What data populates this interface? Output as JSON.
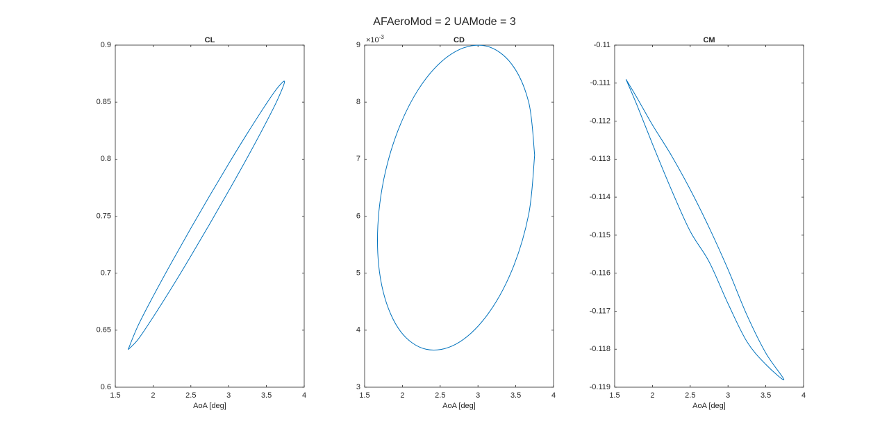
{
  "title": "AFAeroMod = 2 UAMode = 3",
  "chart_data": [
    {
      "type": "line",
      "title": "CL",
      "xlabel": "AoA [deg]",
      "xlim": [
        1.5,
        4
      ],
      "xticks": [
        1.5,
        2,
        2.5,
        3,
        3.5,
        4
      ],
      "ylim": [
        0.6,
        0.9
      ],
      "yticks": [
        0.6,
        0.65,
        0.7,
        0.75,
        0.8,
        0.85,
        0.9
      ],
      "series": [
        {
          "color": "#0072bd",
          "x": [
            1.67,
            1.8,
            2.0,
            2.25,
            2.5,
            2.75,
            3.0,
            3.25,
            3.5,
            3.65,
            3.74,
            3.65,
            3.5,
            3.25,
            3.0,
            2.75,
            2.5,
            2.25,
            2.0,
            1.8,
            1.67
          ],
          "values": [
            0.633,
            0.6538,
            0.6796,
            0.71,
            0.7394,
            0.768,
            0.7959,
            0.8229,
            0.8487,
            0.8628,
            0.868,
            0.8526,
            0.8327,
            0.8017,
            0.7721,
            0.7432,
            0.715,
            0.6876,
            0.6614,
            0.6418,
            0.633
          ]
        }
      ]
    },
    {
      "type": "line",
      "title": "CD",
      "xlabel": "AoA [deg]",
      "yscale_base": "×10",
      "yscale_exponent": "-3",
      "xlim": [
        1.5,
        4
      ],
      "xticks": [
        1.5,
        2,
        2.5,
        3,
        3.5,
        4
      ],
      "ylim": [
        3,
        9
      ],
      "yticks": [
        3,
        4,
        5,
        6,
        7,
        8,
        9
      ],
      "series": [
        {
          "color": "#0072bd",
          "x": [
            3.75,
            3.671,
            3.445,
            3.108,
            2.71,
            2.312,
            1.975,
            1.749,
            1.67,
            1.749,
            1.975,
            2.312,
            2.71,
            3.108,
            3.445,
            3.671,
            3.75
          ],
          "values": [
            7.071,
            8.0,
            8.668,
            8.983,
            8.893,
            8.414,
            7.614,
            6.617,
            5.576,
            4.656,
            3.979,
            3.666,
            3.757,
            4.241,
            5.036,
            6.031,
            7.071
          ]
        }
      ]
    },
    {
      "type": "line",
      "title": "CM",
      "xlabel": "AoA [deg]",
      "xlim": [
        1.5,
        4
      ],
      "xticks": [
        1.5,
        2,
        2.5,
        3,
        3.5,
        4
      ],
      "ylim": [
        -0.119,
        -0.11
      ],
      "yticks": [
        -0.119,
        -0.118,
        -0.117,
        -0.116,
        -0.115,
        -0.114,
        -0.113,
        -0.112,
        -0.111,
        -0.11
      ],
      "series": [
        {
          "color": "#0072bd",
          "x": [
            1.65,
            1.8,
            2.0,
            2.25,
            2.5,
            2.75,
            3.0,
            3.25,
            3.5,
            3.74,
            3.5,
            3.25,
            3.0,
            2.75,
            2.5,
            2.25,
            2.0,
            1.8,
            1.65
          ],
          "values": [
            -0.1109,
            -0.1114,
            -0.1121,
            -0.1129,
            -0.1138,
            -0.1148,
            -0.1159,
            -0.1171,
            -0.1181,
            -0.1188,
            -0.1184,
            -0.1178,
            -0.1168,
            -0.1157,
            -0.1149,
            -0.1138,
            -0.1126,
            -0.1116,
            -0.1109
          ]
        }
      ]
    }
  ]
}
